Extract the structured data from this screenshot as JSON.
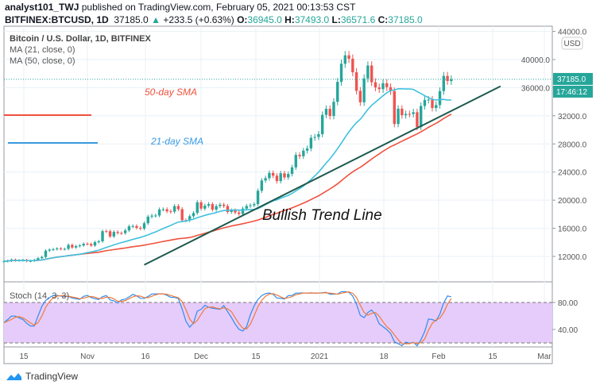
{
  "header": {
    "author": "analyst101_TWJ",
    "published": "published on TradingView.com, February 05, 2021 00:13:53 CST",
    "symbol": "BITFINEX:BTCUSD, 1D",
    "last": "37185.0",
    "change": "+233.5 (+0.63%)",
    "o_label": "O:",
    "o": "36945.0",
    "h_label": "H:",
    "h": "37493.0",
    "l_label": "L:",
    "l": "36571.6",
    "c_label": "C:",
    "c": "37185.0"
  },
  "legend": {
    "title": "Bitcoin / U.S. Dollar, 1D, BITFINEX",
    "ma21": "MA (21, close, 0)",
    "ma50": "MA (50, close, 0)",
    "stoch": "Stoch (14, 3, 3)"
  },
  "annotations": {
    "sma50": "50-day SMA",
    "sma21": "21-day SMA",
    "trend": "Bullish Trend Line"
  },
  "price_axis": {
    "currency": "USD",
    "current": "37185.0",
    "countdown": "17:46:12"
  },
  "footer": {
    "brand": "TradingView"
  },
  "colors": {
    "up": "#26a69a",
    "down": "#ef5350",
    "ma21": "#3fc1dd",
    "ma50": "#f0513d",
    "trend": "#1e5a4e",
    "stochK": "#2f8cf0",
    "stochD": "#f07a3a",
    "band": "#e6ccfa"
  },
  "chart_data": {
    "type": "candlestick",
    "start_date": "2020-10-10",
    "end_date": "2021-02-05",
    "close": [
      11300,
      11380,
      11540,
      11420,
      11430,
      11500,
      11320,
      11360,
      11500,
      11750,
      11920,
      12820,
      12970,
      13030,
      13130,
      13040,
      13070,
      13640,
      13270,
      13460,
      13560,
      13800,
      13760,
      13550,
      14030,
      14150,
      15590,
      15580,
      14840,
      15480,
      15330,
      15310,
      15700,
      16280,
      16320,
      16070,
      15960,
      16720,
      17660,
      17800,
      17820,
      18680,
      18700,
      18420,
      18370,
      19160,
      18720,
      17150,
      17140,
      17720,
      18180,
      19700,
      18800,
      19220,
      19440,
      18660,
      19150,
      19360,
      19170,
      18320,
      18550,
      18250,
      18040,
      18800,
      19170,
      19270,
      19440,
      21340,
      22800,
      23130,
      23870,
      23480,
      22720,
      23820,
      23240,
      23730,
      24660,
      26440,
      26250,
      27040,
      27360,
      28880,
      28990,
      29380,
      32130,
      32990,
      31970,
      33990,
      36820,
      39400,
      40600,
      40120,
      38200,
      35550,
      33920,
      37320,
      39150,
      36770,
      36030,
      35790,
      36630,
      36070,
      35500,
      30830,
      33010,
      32080,
      32260,
      32250,
      32510,
      30400,
      33400,
      34260,
      34300,
      33110,
      33530,
      35510,
      37670,
      36950,
      37185
    ],
    "y_ticks": [
      12000,
      16000,
      20000,
      24000,
      28000,
      32000,
      36000,
      40000,
      44000
    ],
    "y_tick_labels": [
      "12000.0",
      "16000.0",
      "20000.0",
      "24000.0",
      "28000.0",
      "32000.0",
      "36000.0",
      "40000.0",
      "44000.0"
    ],
    "ylim": [
      8500,
      45000
    ],
    "x_tick_labels": [
      "15",
      "Nov",
      "16",
      "Dec",
      "15",
      "2021",
      "18",
      "Feb",
      "15",
      "Mar"
    ],
    "indicators": [
      "MA 21",
      "MA 50",
      "Stoch 14,3,3"
    ],
    "stoch_ticks": [
      "80.00",
      "40.00"
    ],
    "stoch_band": [
      20,
      80
    ],
    "trend_line": {
      "from": [
        "2020-11-16",
        10800
      ],
      "to": [
        "2021-02-18",
        36200
      ]
    }
  }
}
